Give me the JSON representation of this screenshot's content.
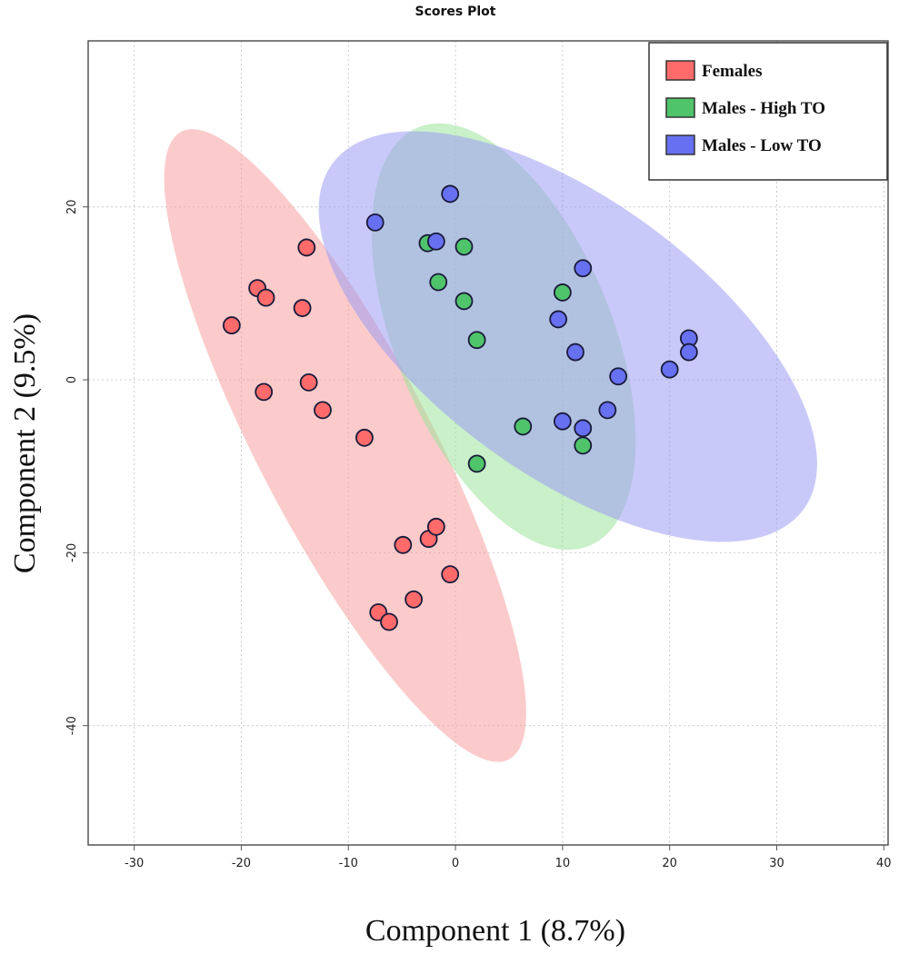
{
  "chart_data": {
    "type": "scatter",
    "title": "Scores Plot",
    "xlabel": "Component 1 (8.7%)",
    "ylabel": "Component 2 (9.5%)",
    "xlim": [
      -34.3,
      40.4
    ],
    "ylim": [
      -53.8,
      39.2
    ],
    "xticks": [
      -30,
      -20,
      -10,
      0,
      10,
      20,
      30,
      40
    ],
    "yticks": [
      20,
      0,
      -20,
      -40
    ],
    "grid": true,
    "legend_position": "top-right",
    "series": [
      {
        "name": "Females",
        "color": "#ff6b6b",
        "ellipse_color": "#f8a0a0",
        "ellipse": {
          "center": [
            -10.3,
            -7.6
          ],
          "major_end": [
            -25.6,
            28.7
          ],
          "minor_ratio": 0.245
        },
        "points": [
          [
            -20.9,
            6.3
          ],
          [
            -18.5,
            10.6
          ],
          [
            -17.7,
            9.5
          ],
          [
            -13.9,
            15.3
          ],
          [
            -14.3,
            8.3
          ],
          [
            -13.7,
            -0.3
          ],
          [
            -17.9,
            -1.4
          ],
          [
            -12.4,
            -3.5
          ],
          [
            -8.5,
            -6.7
          ],
          [
            -4.9,
            -19.1
          ],
          [
            -2.5,
            -18.4
          ],
          [
            -1.8,
            -17.0
          ],
          [
            -0.5,
            -22.5
          ],
          [
            -3.9,
            -25.4
          ],
          [
            -7.2,
            -26.9
          ],
          [
            -6.2,
            -28.0
          ]
        ]
      },
      {
        "name": "Males - High TO",
        "color": "#4fc46a",
        "ellipse_color": "#9de39d",
        "ellipse": {
          "center": [
            4.5,
            5.0
          ],
          "major_end": [
            -3.5,
            29.2
          ],
          "minor_ratio": 0.48
        },
        "points": [
          [
            -2.6,
            15.8
          ],
          [
            0.8,
            15.4
          ],
          [
            -1.6,
            11.3
          ],
          [
            0.8,
            9.1
          ],
          [
            2.0,
            4.6
          ],
          [
            10.0,
            10.1
          ],
          [
            6.3,
            -5.4
          ],
          [
            11.9,
            -7.6
          ],
          [
            2.0,
            -9.7
          ]
        ]
      },
      {
        "name": "Males - Low TO",
        "color": "#6670f0",
        "ellipse_color": "#9c9cf4",
        "ellipse": {
          "center": [
            10.5,
            5.0
          ],
          "major_end": [
            -11.5,
            25.0
          ],
          "minor_ratio": 0.47
        },
        "points": [
          [
            -7.5,
            18.2
          ],
          [
            -0.5,
            21.5
          ],
          [
            -1.8,
            16.0
          ],
          [
            11.9,
            12.9
          ],
          [
            9.6,
            7.0
          ],
          [
            11.2,
            3.2
          ],
          [
            15.2,
            0.4
          ],
          [
            14.2,
            -3.5
          ],
          [
            10.0,
            -4.8
          ],
          [
            11.9,
            -5.6
          ],
          [
            20.0,
            1.2
          ],
          [
            21.8,
            4.8
          ],
          [
            21.8,
            3.2
          ]
        ]
      }
    ]
  }
}
